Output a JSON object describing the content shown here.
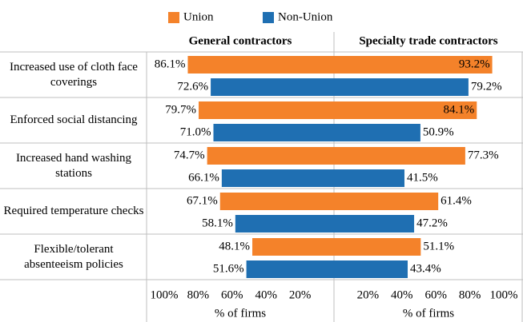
{
  "chart_data": {
    "type": "bar",
    "orientation": "horizontal",
    "categories": [
      "Increased use of cloth face coverings",
      "Enforced social distancing",
      "Increased hand washing stations",
      "Required temperature checks",
      "Flexible/tolerant absenteeism policies"
    ],
    "series": [
      {
        "name": "Union",
        "color": "#f4822a"
      },
      {
        "name": "Non-Union",
        "color": "#1f6fb2"
      }
    ],
    "panels": [
      {
        "title": "General contractors",
        "xlim": [
          100,
          0
        ],
        "xlabel": "% of firms",
        "xticks": [
          {
            "value": 100,
            "label": "100%"
          },
          {
            "value": 80,
            "label": "80%"
          },
          {
            "value": 60,
            "label": "60%"
          },
          {
            "value": 40,
            "label": "40%"
          },
          {
            "value": 20,
            "label": "20%"
          }
        ],
        "series": [
          {
            "values": [
              86.1,
              79.7,
              74.7,
              67.1,
              48.1
            ],
            "value_labels": [
              "86.1%",
              "79.7%",
              "74.7%",
              "67.1%",
              "48.1%"
            ]
          },
          {
            "values": [
              72.6,
              71.0,
              66.1,
              58.1,
              51.6
            ],
            "value_labels": [
              "72.6%",
              "71.0%",
              "66.1%",
              "58.1%",
              "51.6%"
            ]
          }
        ]
      },
      {
        "title": "Specialty trade contractors",
        "xlim": [
          0,
          100
        ],
        "xlabel": "% of firms",
        "xticks": [
          {
            "value": 20,
            "label": "20%"
          },
          {
            "value": 40,
            "label": "40%"
          },
          {
            "value": 60,
            "label": "60%"
          },
          {
            "value": 80,
            "label": "80%"
          },
          {
            "value": 100,
            "label": "100%"
          }
        ],
        "series": [
          {
            "values": [
              93.2,
              84.1,
              77.3,
              61.4,
              51.1
            ],
            "value_labels": [
              "93.2%",
              "84.1%",
              "77.3%",
              "61.4%",
              "51.1%"
            ]
          },
          {
            "values": [
              79.2,
              50.9,
              41.5,
              47.2,
              43.4
            ],
            "value_labels": [
              "79.2%",
              "50.9%",
              "41.5%",
              "47.2%",
              "43.4%"
            ]
          }
        ]
      }
    ]
  }
}
